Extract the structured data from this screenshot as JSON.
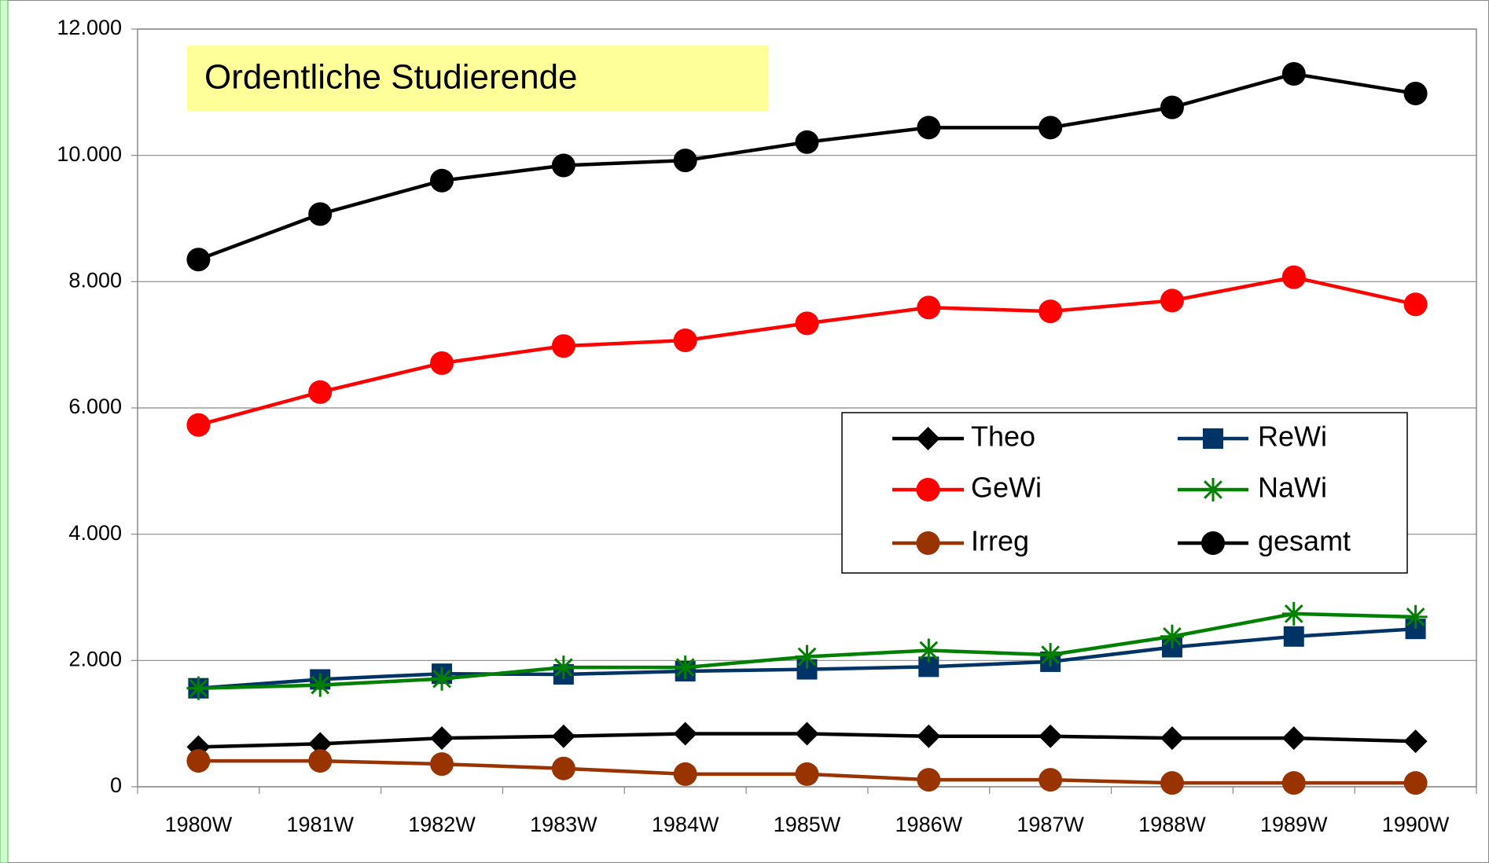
{
  "chart_data": {
    "type": "line",
    "title": "Ordentliche Studierende",
    "categories": [
      "1980W",
      "1981W",
      "1982W",
      "1983W",
      "1984W",
      "1985W",
      "1986W",
      "1987W",
      "1988W",
      "1989W",
      "1990W"
    ],
    "series": [
      {
        "name": "Theo",
        "color": "#000000",
        "marker": "diamond",
        "values": [
          630,
          680,
          770,
          800,
          840,
          840,
          800,
          800,
          770,
          770,
          720
        ]
      },
      {
        "name": "ReWi",
        "color": "#003366",
        "marker": "square",
        "values": [
          1560,
          1700,
          1790,
          1780,
          1830,
          1860,
          1900,
          1980,
          2210,
          2380,
          2500
        ]
      },
      {
        "name": "GeWi",
        "color": "#ff0000",
        "marker": "circle",
        "values": [
          5730,
          6250,
          6710,
          6980,
          7070,
          7340,
          7590,
          7530,
          7700,
          8070,
          7640
        ]
      },
      {
        "name": "NaWi",
        "color": "#008000",
        "marker": "asterisk",
        "values": [
          1560,
          1610,
          1710,
          1890,
          1890,
          2060,
          2160,
          2090,
          2380,
          2740,
          2690
        ]
      },
      {
        "name": "Irreg",
        "color": "#993300",
        "marker": "circle",
        "values": [
          410,
          410,
          360,
          290,
          200,
          200,
          110,
          110,
          60,
          60,
          60
        ]
      },
      {
        "name": "gesamt",
        "color": "#000000",
        "marker": "circle",
        "values": [
          8350,
          9070,
          9600,
          9840,
          9920,
          10210,
          10440,
          10440,
          10760,
          11290,
          10980
        ]
      }
    ],
    "ylim": [
      0,
      12000
    ],
    "yticks": [
      0,
      {
        "value": 2000,
        "label": "2.000"
      },
      {
        "value": 4000,
        "label": "4.000"
      },
      {
        "value": 6000,
        "label": "6.000"
      },
      {
        "value": 8000,
        "label": "8.000"
      },
      {
        "value": 10000,
        "label": "10.000"
      },
      {
        "value": 12000,
        "label": "12.000"
      }
    ],
    "grid": true
  }
}
